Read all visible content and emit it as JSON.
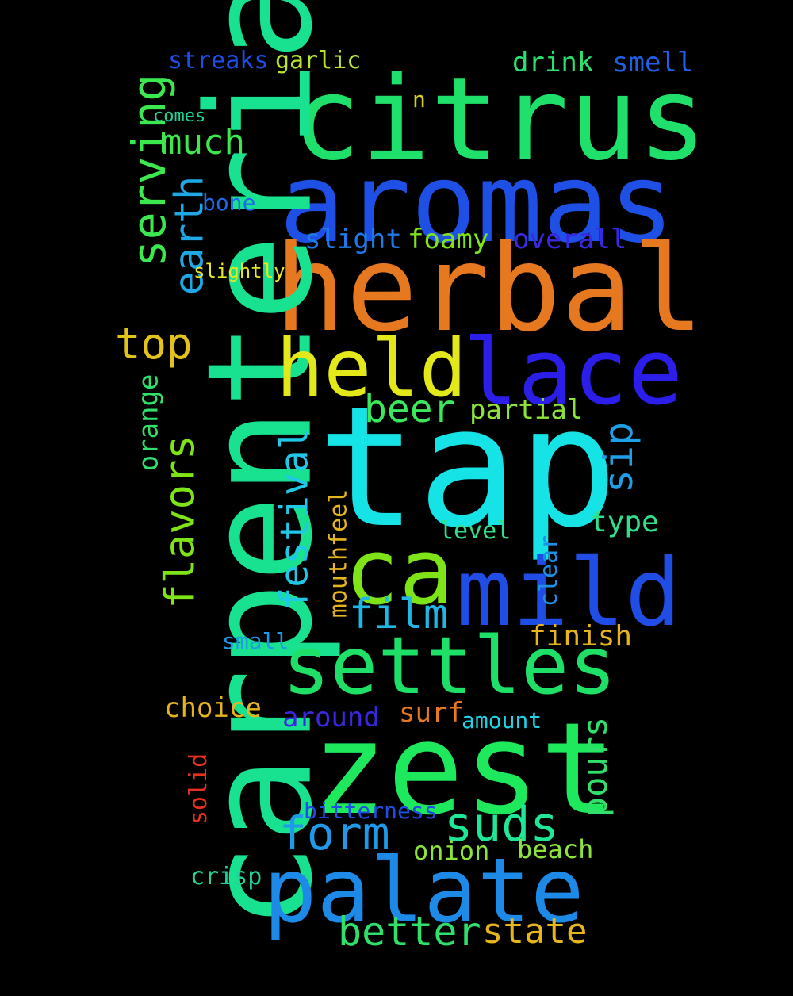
{
  "words": [
    {
      "text": "citrus",
      "color": "#1fe06a"
    },
    {
      "text": "aromas",
      "color": "#1f50e6"
    },
    {
      "text": "herbal",
      "color": "#e67820"
    },
    {
      "text": "carpenteria",
      "color": "#18e290"
    },
    {
      "text": "held",
      "color": "#e3e81a"
    },
    {
      "text": "lace",
      "color": "#2a1ee8"
    },
    {
      "text": "tap",
      "color": "#16e3e6"
    },
    {
      "text": "ca",
      "color": "#7ee418"
    },
    {
      "text": "mild",
      "color": "#1f4de6"
    },
    {
      "text": "settles",
      "color": "#1fe066"
    },
    {
      "text": "zest",
      "color": "#1ee85b"
    },
    {
      "text": "palate",
      "color": "#1e8ae8"
    },
    {
      "text": "serving",
      "color": "#3be84e"
    },
    {
      "text": "earth",
      "color": "#1ea8e6"
    },
    {
      "text": "much",
      "color": "#3de84a"
    },
    {
      "text": "top",
      "color": "#e3c21a"
    },
    {
      "text": "beer",
      "color": "#3be85c"
    },
    {
      "text": "partial",
      "color": "#8de33a"
    },
    {
      "text": "flavors",
      "color": "#7ee418"
    },
    {
      "text": "festival",
      "color": "#1ec8e6"
    },
    {
      "text": "sip",
      "color": "#1ea0e6"
    },
    {
      "text": "type",
      "color": "#30e08a"
    },
    {
      "text": "film",
      "color": "#1fb8e6"
    },
    {
      "text": "finish",
      "color": "#e6b51e"
    },
    {
      "text": "form",
      "color": "#1e9ae8"
    },
    {
      "text": "suds",
      "color": "#1ee898"
    },
    {
      "text": "pours",
      "color": "#30e06a"
    },
    {
      "text": "better",
      "color": "#30e06a"
    },
    {
      "text": "state",
      "color": "#e6b51e"
    },
    {
      "text": "streaks",
      "color": "#1f4de6"
    },
    {
      "text": "garlic",
      "color": "#b8e630"
    },
    {
      "text": "drink",
      "color": "#2ee070"
    },
    {
      "text": "smell",
      "color": "#1f60e6"
    },
    {
      "text": "comes",
      "color": "#1ed49a"
    },
    {
      "text": "n",
      "color": "#d8d018"
    },
    {
      "text": "bone",
      "color": "#1e6ae8"
    },
    {
      "text": "slight",
      "color": "#1e7ae8"
    },
    {
      "text": "foamy",
      "color": "#7ee418"
    },
    {
      "text": "overall",
      "color": "#3a28e0"
    },
    {
      "text": "slightly",
      "color": "#e6e81e"
    },
    {
      "text": "orange",
      "color": "#30e06a"
    },
    {
      "text": "mouthfeel",
      "color": "#e6b51e"
    },
    {
      "text": "level",
      "color": "#30e08a"
    },
    {
      "text": "clear",
      "color": "#1e90e8"
    },
    {
      "text": "small",
      "color": "#1e9ae8"
    },
    {
      "text": "choice",
      "color": "#e6b51e"
    },
    {
      "text": "around",
      "color": "#3a28e0"
    },
    {
      "text": "surf",
      "color": "#e67820"
    },
    {
      "text": "amount",
      "color": "#1ed4e6"
    },
    {
      "text": "solid",
      "color": "#e63020"
    },
    {
      "text": "bitterness",
      "color": "#1f4de6"
    },
    {
      "text": "onion",
      "color": "#8de33a"
    },
    {
      "text": "beach",
      "color": "#8de33a"
    },
    {
      "text": "crisp",
      "color": "#1ed49a"
    }
  ]
}
